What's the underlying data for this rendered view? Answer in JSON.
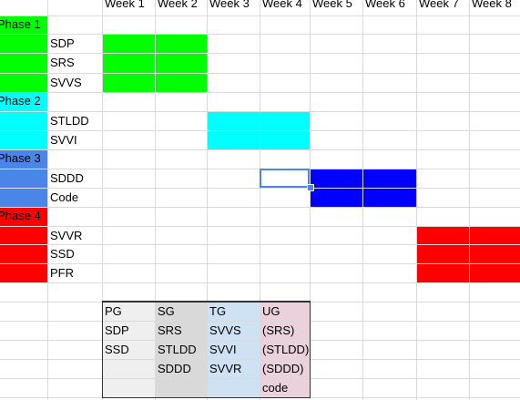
{
  "week_headers": [
    "Week 1",
    "Week 2",
    "Week 3",
    "Week 4",
    "Week 5",
    "Week 6",
    "Week 7",
    "Week 8"
  ],
  "phases": [
    {
      "label": "Phase 1",
      "color": "#00ff00",
      "tasks": [
        "SDP",
        "SRS",
        "SVVS"
      ],
      "weeks": [
        1,
        2
      ]
    },
    {
      "label": "Phase 2",
      "color": "#00ffff",
      "tasks": [
        "STLDD",
        "SVVI"
      ],
      "weeks": [
        3,
        4
      ]
    },
    {
      "label": "Phase 3",
      "color": "#4a86e8",
      "bar_color": "#0000ff",
      "tasks": [
        "SDDD",
        "Code"
      ],
      "weeks": [
        5,
        6
      ]
    },
    {
      "label": "Phase 4",
      "color": "#ff0000",
      "tasks": [
        "SVVR",
        "SSD",
        "PFR"
      ],
      "weeks": [
        7,
        8
      ]
    }
  ],
  "selected_cell": {
    "column": "Week 4",
    "row": "SDDD"
  },
  "groups_table": {
    "columns": [
      {
        "header": "PG",
        "color": "#efefef",
        "items": [
          "SDP",
          "SSD",
          ""
        ]
      },
      {
        "header": "SG",
        "color": "#d9d9d9",
        "items": [
          "SRS",
          "STLDD",
          "SDDD"
        ]
      },
      {
        "header": "TG",
        "color": "#cfe2f3",
        "items": [
          "SVVS",
          "SVVI",
          "SVVR"
        ]
      },
      {
        "header": "UG",
        "color": "#ead1dc",
        "items": [
          "(SRS)",
          "(STLDD)",
          "(SDDD)",
          "code"
        ]
      }
    ]
  }
}
